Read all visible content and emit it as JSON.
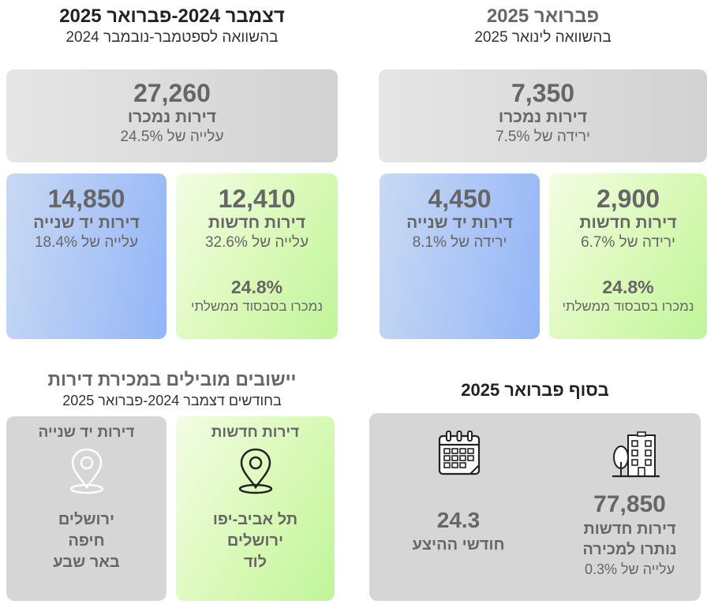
{
  "left_panel": {
    "title": "דצמבר 2024-פברואר 2025",
    "subtitle": "בהשוואה לספטמבר-נובמבר 2024",
    "total": {
      "value": "27,260",
      "label": "דירות נמכרו",
      "change": "עלייה של 24.5%"
    },
    "new": {
      "value": "12,410",
      "label": "דירות חדשות",
      "change": "עלייה של 32.6%",
      "subsidized_pct": "24.8%",
      "subsidized_label": "נמכרו בסבסוד ממשלתי"
    },
    "second_hand": {
      "value": "14,850",
      "label": "דירות יד שנייה",
      "change": "עלייה של 18.4%"
    }
  },
  "right_panel": {
    "title": "פברואר 2025",
    "subtitle": "בהשוואה לינואר 2025",
    "total": {
      "value": "7,350",
      "label": "דירות נמכרו",
      "change": "ירידה של 7.5%"
    },
    "new": {
      "value": "2,900",
      "label": "דירות חדשות",
      "change": "ירידה של 6.7%",
      "subsidized_pct": "24.8%",
      "subsidized_label": "נמכרו בסבסוד ממשלתי"
    },
    "second_hand": {
      "value": "4,450",
      "label": "דירות יד שנייה",
      "change": "ירידה של 8.1%"
    }
  },
  "leading_cities": {
    "title": "יישובים מובילים במכירת דירות",
    "subtitle": "בחודשים דצמבר 2024-פברואר 2025",
    "new": {
      "label": "דירות חדשות",
      "cities": [
        "תל אביב-יפו",
        "ירושלים",
        "לוד"
      ],
      "icon": "map-pin-icon"
    },
    "second_hand": {
      "label": "דירות יד שנייה",
      "cities": [
        "ירושלים",
        "חיפה",
        "באר שבע"
      ],
      "icon": "map-pin-icon"
    }
  },
  "end_of_month": {
    "title": "בסוף פברואר 2025",
    "inventory": {
      "value": "77,850",
      "label_line1": "דירות חדשות",
      "label_line2": "נותרו למכירה",
      "change": "עלייה של 0.3%",
      "icon": "building-icon"
    },
    "months_supply": {
      "value": "24.3",
      "label": "חודשי ההיצע",
      "icon": "calendar-icon"
    }
  },
  "colors": {
    "text_dark": "#222222",
    "text_gray": "#666666",
    "card_gray": "#d6d6d6",
    "card_green": "#d9f9b6",
    "card_blue": "#a9c4f6"
  }
}
